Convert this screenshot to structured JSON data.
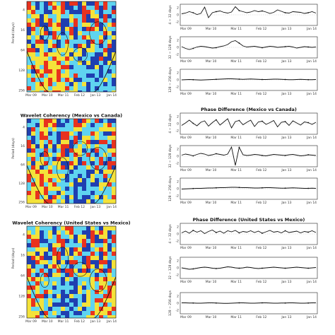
{
  "colors": {
    "wavelet_low": "#1f3fb0",
    "wavelet_mid": "#5fd4f0",
    "wavelet_midhigh": "#f4e23a",
    "wavelet_high": "#e8321e",
    "cone": "#111111",
    "series": "#111111"
  },
  "x_ticks_wavelet": [
    "Mar 09",
    "Mar 10",
    "Mar 11",
    "Feb 12",
    "Jan 13",
    "Jan 14"
  ],
  "x_ticks_series": [
    "Mar 09",
    "Mar 10",
    "Mar 11",
    "Feb 12",
    "Jan 13",
    "Jan 14"
  ],
  "chart_data": [
    {
      "type": "heatmap",
      "panel": "wavelet-1",
      "title": "",
      "ylabel": "Period (days)",
      "yticks": [
        "4",
        "16",
        "64",
        "128",
        "256"
      ]
    },
    {
      "type": "heatmap",
      "panel": "wavelet-2",
      "title": "Wavelet Coherency (Mexico vs Canada)",
      "ylabel": "Period (days)",
      "yticks": [
        "4",
        "16",
        "64",
        "128",
        "256"
      ]
    },
    {
      "type": "heatmap",
      "panel": "wavelet-3",
      "title": "Wavelet Coherency (United States vs Mexico)",
      "ylabel": "Period (days)",
      "yticks": [
        "4",
        "16",
        "64",
        "128",
        "256"
      ]
    },
    {
      "type": "line",
      "panel": "series-1",
      "title": "",
      "ylabel": "4 ~ 32 days",
      "yticks": [
        "2",
        "0",
        "-2"
      ],
      "ylim": [
        -3,
        3
      ],
      "values": [
        0.3,
        0.5,
        0.9,
        0.6,
        0.1,
        0.4,
        2.2,
        -0.8,
        0.6,
        0.9,
        1.1,
        0.7,
        0.5,
        0.8,
        2.3,
        1.2,
        0.9,
        0.6,
        0.8,
        1.2,
        0.9,
        1.1,
        0.8,
        0.4,
        0.7,
        1.4,
        1.0,
        0.6,
        0.5,
        0.9,
        0.8,
        0.7,
        0.4,
        0.6,
        0.9,
        0.5
      ]
    },
    {
      "type": "line",
      "panel": "series-2",
      "title": "",
      "ylabel": "32 ~ 128 days",
      "yticks": [
        "2",
        "0",
        "-2"
      ],
      "ylim": [
        -3,
        3
      ],
      "values": [
        0.2,
        -0.3,
        -0.6,
        -0.3,
        0.1,
        0.3,
        0.2,
        0.0,
        -0.2,
        -0.1,
        0.2,
        0.4,
        0.8,
        1.6,
        1.9,
        1.2,
        0.4,
        0.1,
        0.2,
        0.3,
        0.1,
        -0.1,
        0.1,
        0.3,
        0.2,
        0.0,
        0.1,
        0.2,
        0.3,
        0.1,
        -0.2,
        0.0,
        0.2,
        0.1,
        0.0,
        0.1
      ]
    },
    {
      "type": "line",
      "panel": "series-3",
      "title": "",
      "ylabel": "128 ~ 256 days",
      "yticks": [
        "2",
        "0",
        "-2"
      ],
      "ylim": [
        -3,
        3
      ],
      "values": [
        0.0,
        0.05,
        0.1,
        0.05,
        0.0,
        -0.05,
        0.0,
        0.05,
        0.1,
        0.15,
        0.2,
        0.25,
        0.3,
        0.3,
        0.25,
        0.2,
        0.15,
        0.2,
        0.25,
        0.2,
        0.15,
        0.1,
        0.1,
        0.15,
        0.2,
        0.2,
        0.15,
        0.1,
        0.05,
        0.05,
        0.1,
        0.15,
        0.1,
        0.05,
        0.05,
        0.1
      ]
    },
    {
      "type": "line",
      "panel": "series-4",
      "title": "Phase Difference (Mexico vs Canada)",
      "ylabel": "4 ~ 32 days",
      "yticks": [
        "2",
        "0",
        "-2"
      ],
      "ylim": [
        -3,
        3
      ],
      "values": [
        -0.5,
        0.2,
        1.0,
        0.1,
        -0.6,
        0.4,
        0.8,
        -0.7,
        0.3,
        1.1,
        -0.4,
        0.5,
        1.4,
        -1.2,
        0.6,
        0.9,
        -0.3,
        0.4,
        1.0,
        -0.8,
        0.5,
        0.7,
        -0.2,
        0.3,
        0.9,
        -0.9,
        0.4,
        0.6,
        -0.5,
        0.8,
        0.2,
        -0.4,
        0.5,
        0.3,
        -0.2,
        0.4
      ]
    },
    {
      "type": "line",
      "panel": "series-5",
      "title": "",
      "ylabel": "32 ~ 128 days",
      "yticks": [
        "2",
        "0",
        "-2"
      ],
      "ylim": [
        -3,
        3
      ],
      "values": [
        0.3,
        0.6,
        0.4,
        0.1,
        0.5,
        0.8,
        0.6,
        0.2,
        0.4,
        0.7,
        0.5,
        0.3,
        0.6,
        2.6,
        -2.6,
        2.5,
        0.4,
        0.2,
        0.3,
        0.5,
        0.4,
        0.2,
        0.1,
        0.3,
        0.5,
        0.4,
        0.3,
        0.2,
        0.4,
        0.5,
        0.3,
        0.1,
        0.2,
        0.4,
        0.3,
        0.2
      ]
    },
    {
      "type": "line",
      "panel": "series-6",
      "title": "",
      "ylabel": "128 ~ 256 days",
      "yticks": [
        "2",
        "0",
        "-2"
      ],
      "ylim": [
        -3,
        3
      ],
      "values": [
        -0.1,
        -0.05,
        0.0,
        0.05,
        0.1,
        0.1,
        0.15,
        0.2,
        0.2,
        0.25,
        0.3,
        0.3,
        0.35,
        0.4,
        0.4,
        0.35,
        0.3,
        0.3,
        0.25,
        0.2,
        0.2,
        0.25,
        0.3,
        0.3,
        0.25,
        0.2,
        0.15,
        0.15,
        0.2,
        0.25,
        0.2,
        0.15,
        0.1,
        0.1,
        0.15,
        0.1
      ]
    },
    {
      "type": "line",
      "panel": "series-7",
      "title": "Phase Difference (United States vs Mexico)",
      "ylabel": "4 ~ 32 days",
      "yticks": [
        "2",
        "0",
        "-2"
      ],
      "ylim": [
        -3,
        3
      ],
      "values": [
        0.3,
        0.8,
        0.2,
        1.0,
        0.5,
        0.9,
        0.1,
        0.7,
        1.1,
        0.4,
        0.8,
        0.2,
        0.9,
        0.6,
        1.0,
        0.3,
        0.7,
        0.5,
        0.9,
        0.4,
        0.8,
        0.2,
        0.6,
        1.0,
        0.5,
        0.7,
        0.3,
        0.9,
        0.4,
        0.6,
        0.8,
        0.3,
        0.7,
        0.5,
        0.9,
        0.4
      ]
    },
    {
      "type": "line",
      "panel": "series-8",
      "title": "",
      "ylabel": "32 ~ 128 days",
      "yticks": [
        "2",
        "0",
        "-2"
      ],
      "ylim": [
        -3,
        3
      ],
      "values": [
        0.0,
        -0.2,
        -0.4,
        -0.3,
        -0.1,
        0.1,
        0.2,
        0.1,
        -0.1,
        -0.2,
        -0.1,
        0.1,
        0.3,
        0.2,
        0.0,
        -0.1,
        0.0,
        0.2,
        0.1,
        -0.1,
        -0.2,
        -0.1,
        0.0,
        0.1,
        0.2,
        0.1,
        0.0,
        -0.1,
        0.0,
        0.1,
        0.2,
        0.1,
        0.0,
        -0.1,
        0.0,
        0.1
      ]
    },
    {
      "type": "line",
      "panel": "series-9",
      "title": "",
      "ylabel": "128 ~ 256 days",
      "yticks": [
        "2",
        "0",
        "-2"
      ],
      "ylim": [
        -3,
        3
      ],
      "values": [
        0.1,
        0.1,
        0.05,
        0.05,
        0.0,
        0.0,
        0.05,
        0.1,
        0.1,
        0.05,
        0.0,
        -0.05,
        -0.05,
        0.0,
        0.05,
        0.1,
        0.1,
        0.05,
        0.0,
        0.0,
        0.05,
        0.1,
        0.1,
        0.05,
        0.0,
        0.0,
        0.05,
        0.05,
        0.1,
        0.1,
        0.05,
        0.0,
        0.0,
        0.05,
        0.1,
        0.1
      ]
    }
  ]
}
